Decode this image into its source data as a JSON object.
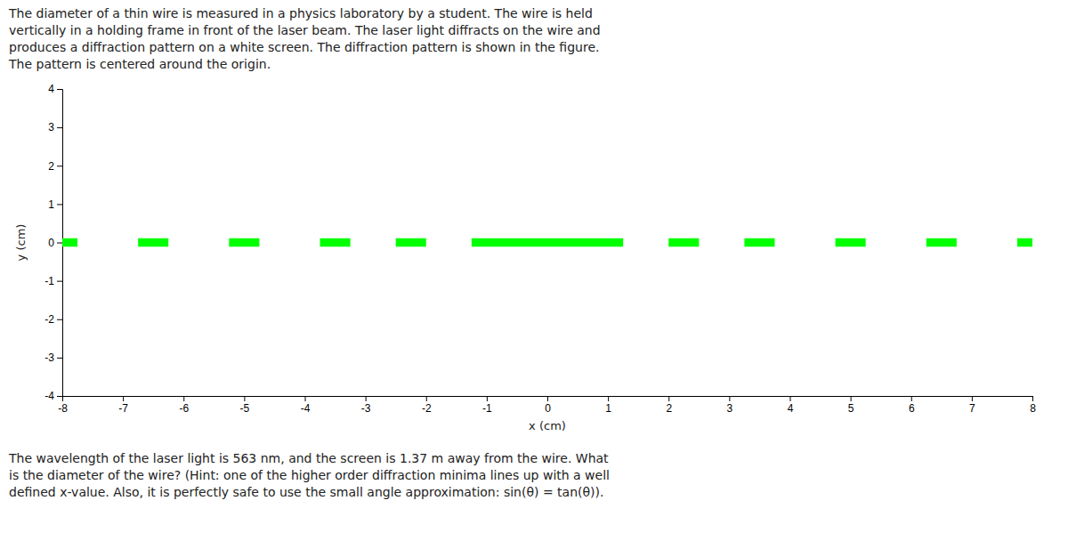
{
  "chart_data": {
    "type": "segments",
    "title": "The diameter of a thin wire is measured in a physics laboratory by a student. The wire is held\nvertically in a holding frame in front of the laser beam. The laser light diffracts on the wire and\nproduces a diffraction pattern on a white screen. The diffraction pattern is shown in the figure.\nThe pattern is centered around the origin.",
    "annotation": "The wavelength of the laser light is 563 nm, and the screen is 1.37 m away from the wire. What\nis the diameter of the wire? (Hint: one of the higher order diffraction minima lines up with a well\ndefined x-value. Also, it is perfectly safe to use the small angle approximation: sin(θ) = tan(θ)).",
    "x_label": "x (cm)",
    "y_label": "y (cm)",
    "starts": [
      -8.0,
      -6.75,
      -5.25,
      -3.75,
      -2.5,
      -1.25,
      2.0,
      3.25,
      4.75,
      6.25,
      7.75
    ],
    "ends": [
      -7.75,
      -6.25,
      -4.75,
      -3.25,
      -2.0,
      1.25,
      2.5,
      3.75,
      5.25,
      6.75,
      8.0
    ],
    "y": 0.0,
    "height": 0.22,
    "color": "#00ff00",
    "xlim": [
      -8,
      8
    ],
    "ylim": [
      -4,
      4
    ],
    "xticks": [
      -8,
      -7,
      -6,
      -5,
      -4,
      -3,
      -2,
      -1,
      0,
      1,
      2,
      3,
      4,
      5,
      6,
      7,
      8
    ],
    "yticks": [
      -4,
      -3,
      -2,
      -1,
      0,
      1,
      2,
      3,
      4
    ]
  }
}
